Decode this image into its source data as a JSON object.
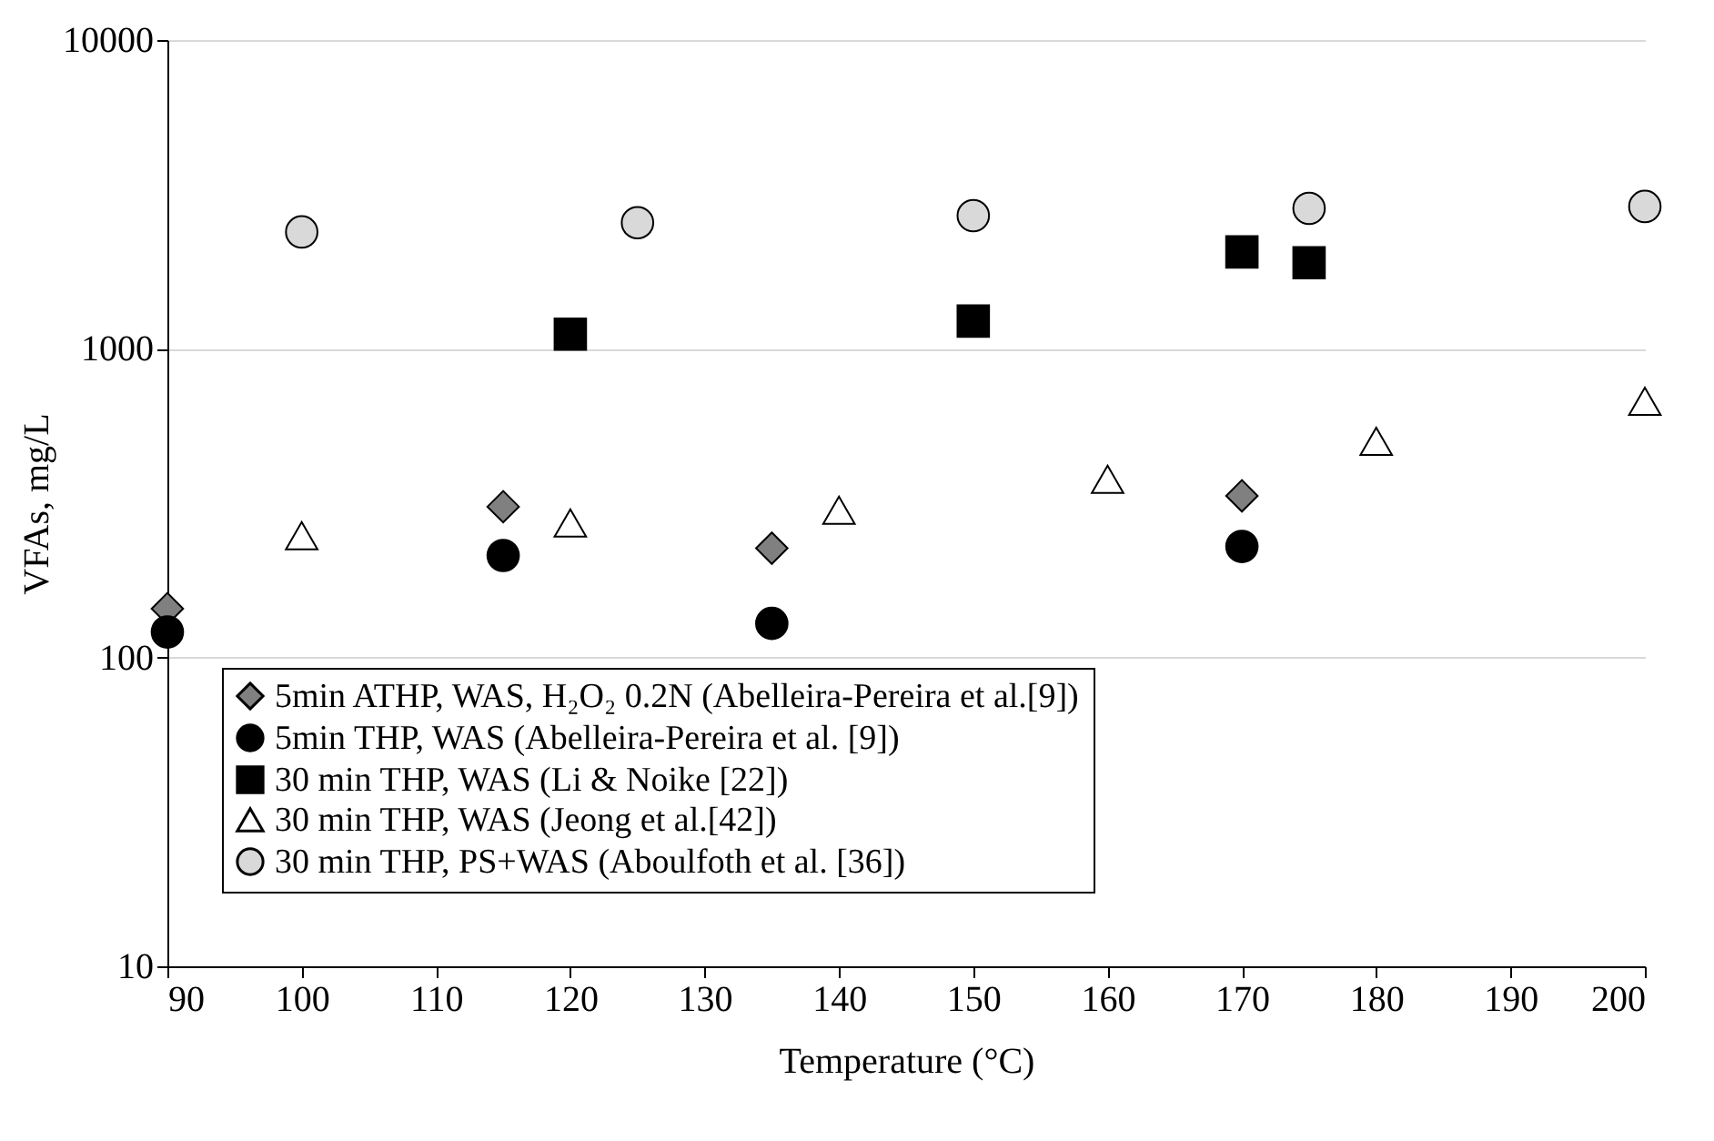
{
  "chart_data": {
    "type": "scatter",
    "xlabel": "Temperature (°C)",
    "ylabel": "VFAs, mg/L",
    "log": "y",
    "grid": "y",
    "legend": "bottom left",
    "xlim": [
      90,
      200
    ],
    "xticks": [
      90,
      100,
      110,
      120,
      130,
      140,
      150,
      160,
      170,
      180,
      190,
      200
    ],
    "ylim": [
      10,
      10000
    ],
    "yticks": [
      10,
      100,
      1000,
      10000
    ],
    "series": [
      {
        "name": "5min ATHP, WAS, H₂O₂ 0.2N (Abelleira-Pereira et al.[9])",
        "color": "#808080",
        "marker": "diamond",
        "x": [
          90,
          115,
          135,
          170
        ],
        "values": [
          144,
          308,
          226,
          334
        ]
      },
      {
        "name": "5min THP, WAS (Abelleira-Pereira et al. [9])",
        "color": "#000000",
        "marker": "circle",
        "x": [
          90,
          115,
          135,
          170
        ],
        "values": [
          121,
          214,
          129,
          229
        ]
      },
      {
        "name": "30 min THP,  WAS (Li & Noike [22])",
        "color": "#000000",
        "marker": "square",
        "x": [
          120,
          150,
          170,
          175
        ],
        "values": [
          1115,
          1230,
          2060,
          1900
        ]
      },
      {
        "name": "30 min THP, WAS (Jeong et al.[42])",
        "color": "#ffffff",
        "marker": "triangle",
        "x": [
          100,
          120,
          140,
          160,
          180,
          200
        ],
        "values": [
          248,
          273,
          300,
          378,
          502,
          676
        ]
      },
      {
        "name": "30 min THP, PS+WAS (Aboulfoth et al. [36])",
        "color": "#d9d9d9",
        "marker": "circle",
        "x": [
          100,
          125,
          150,
          175,
          200
        ],
        "values": [
          2390,
          2560,
          2700,
          2850,
          2890
        ]
      }
    ]
  }
}
